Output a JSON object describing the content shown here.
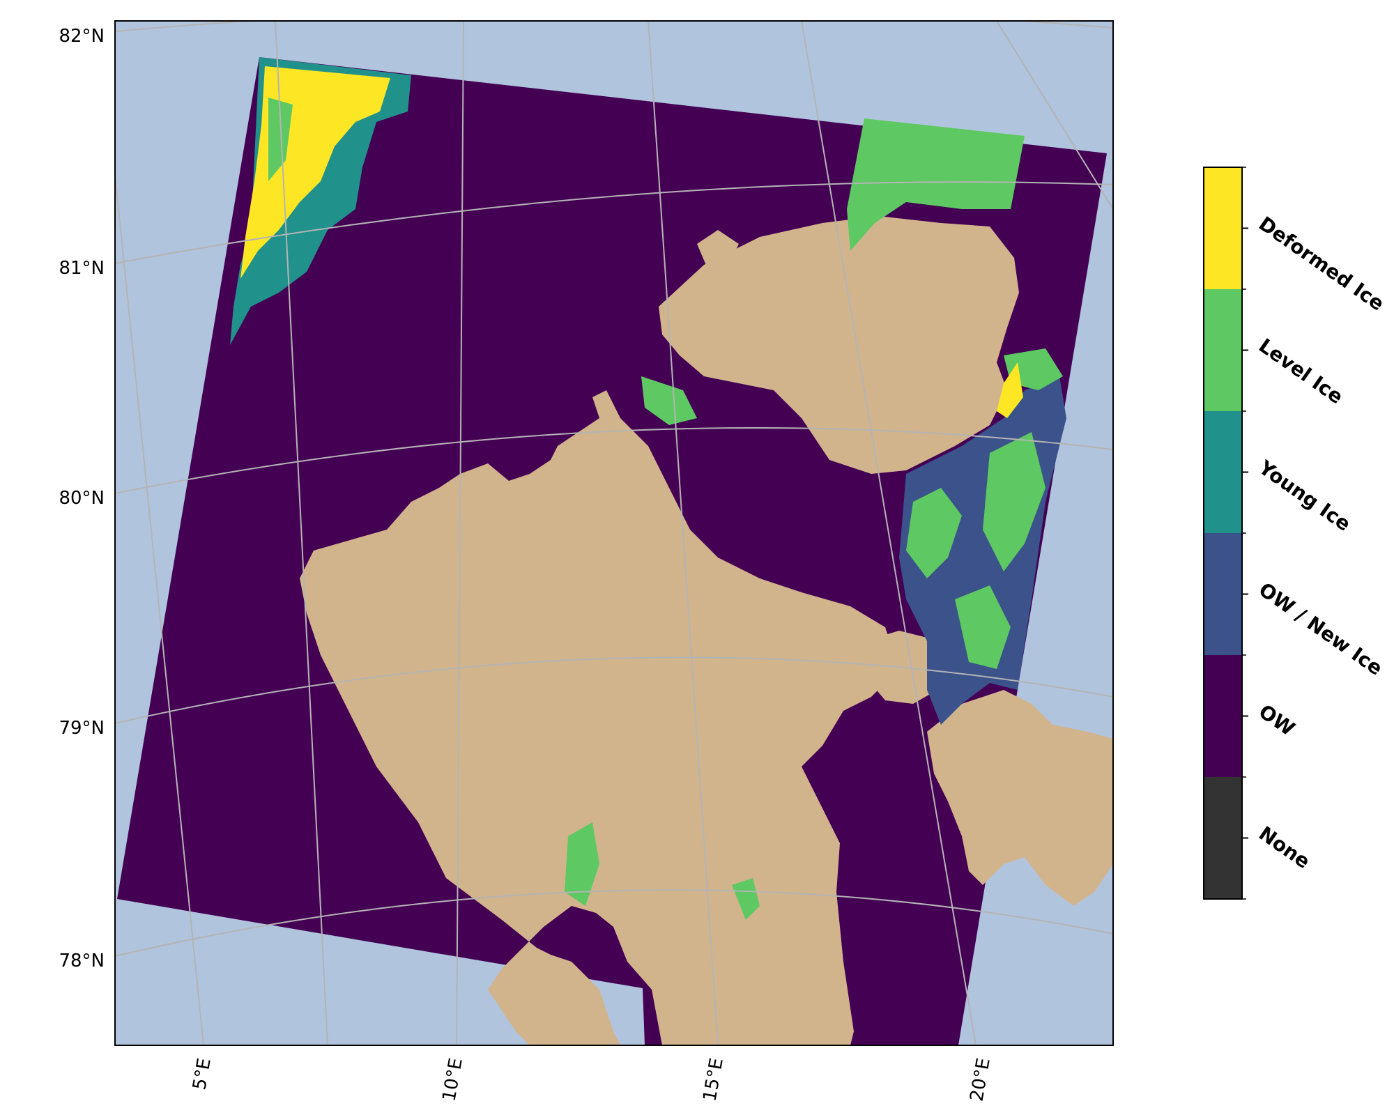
{
  "map": {
    "type": "classified sea-ice map",
    "projection": "polar stereographic",
    "background_color": "#b0c4de",
    "land_color": "#d2b48c",
    "gridline_color": "#b4b4b4",
    "latitude_labels": [
      "82°N",
      "81°N",
      "80°N",
      "79°N",
      "78°N"
    ],
    "longitude_labels": [
      "5°E",
      "10°E",
      "15°E",
      "20°E"
    ]
  },
  "legend": {
    "type": "colorbar",
    "classes": [
      {
        "label": "Deformed Ice",
        "color": "#fde725"
      },
      {
        "label": "Level Ice",
        "color": "#5ec962"
      },
      {
        "label": "Young Ice",
        "color": "#21918c"
      },
      {
        "label": "OW / New Ice",
        "color": "#3b528b"
      },
      {
        "label": "OW",
        "color": "#440154"
      },
      {
        "label": "None",
        "color": "#333333"
      }
    ]
  }
}
